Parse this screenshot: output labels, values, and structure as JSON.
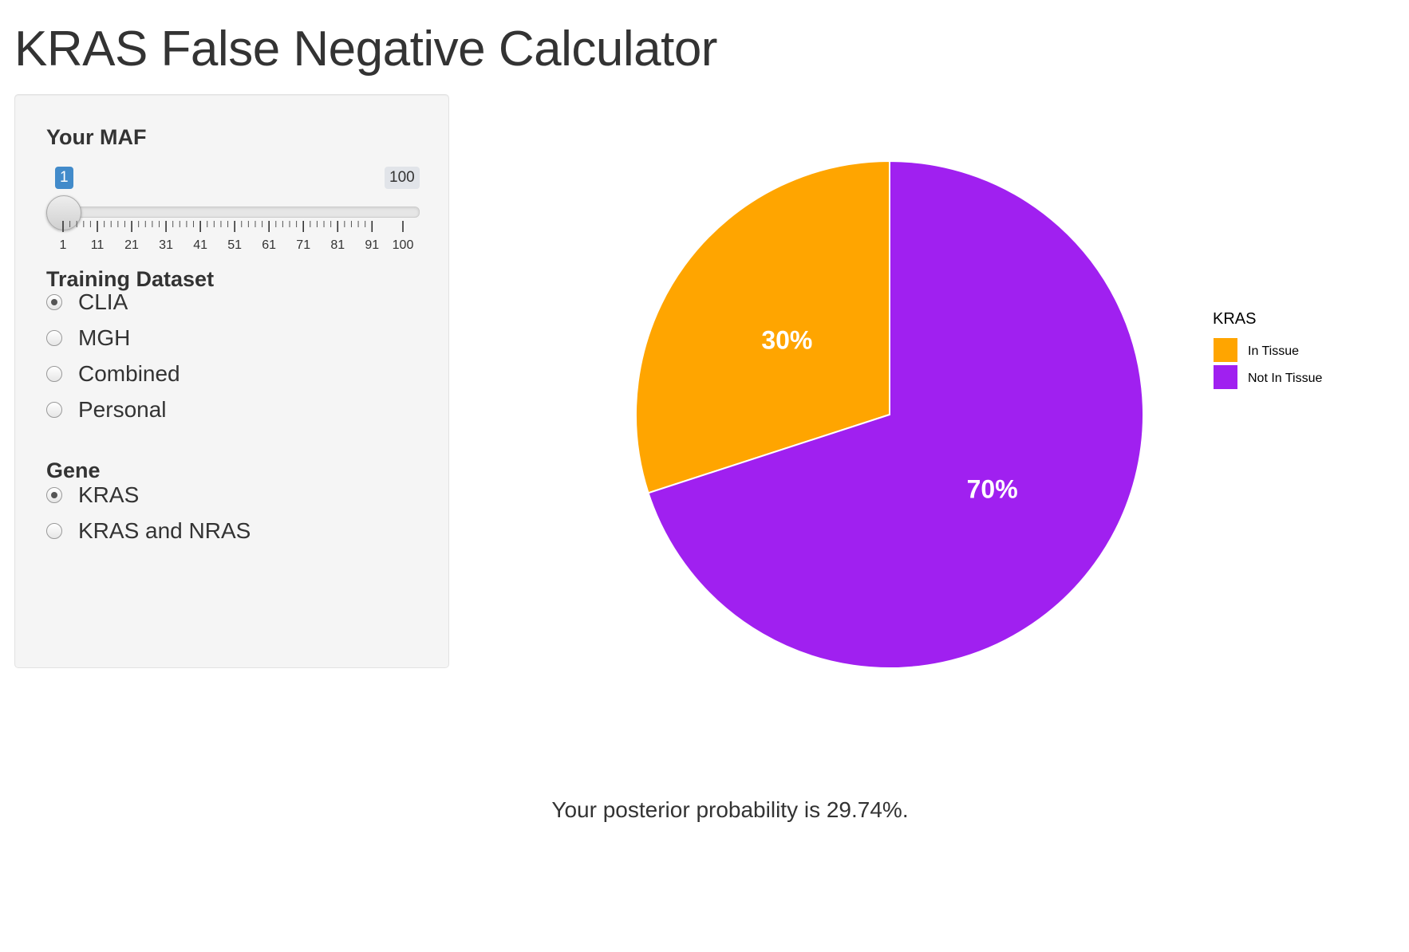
{
  "app": {
    "title": "KRAS False Negative Calculator"
  },
  "sidebar": {
    "maf": {
      "label": "Your MAF",
      "value": 1,
      "min": 1,
      "max": 100,
      "current_label": "1",
      "max_label": "100",
      "tick_labels": [
        "1",
        "11",
        "21",
        "31",
        "41",
        "51",
        "61",
        "71",
        "81",
        "91",
        "100"
      ]
    },
    "training_dataset": {
      "label": "Training Dataset",
      "options": [
        "CLIA",
        "MGH",
        "Combined",
        "Personal"
      ],
      "selected": "CLIA"
    },
    "gene": {
      "label": "Gene",
      "options": [
        "KRAS",
        "KRAS and NRAS"
      ],
      "selected": "KRAS"
    }
  },
  "chart_data": {
    "type": "pie",
    "title": "",
    "legend_title": "KRAS",
    "legend_position": "right",
    "categories": [
      "In Tissue",
      "Not In Tissue"
    ],
    "values": [
      30,
      70
    ],
    "labels": [
      "30%",
      "70%"
    ],
    "colors": [
      "#FFA500",
      "#A020F0"
    ]
  },
  "result": {
    "text": "Your posterior probability is 29.74%."
  }
}
